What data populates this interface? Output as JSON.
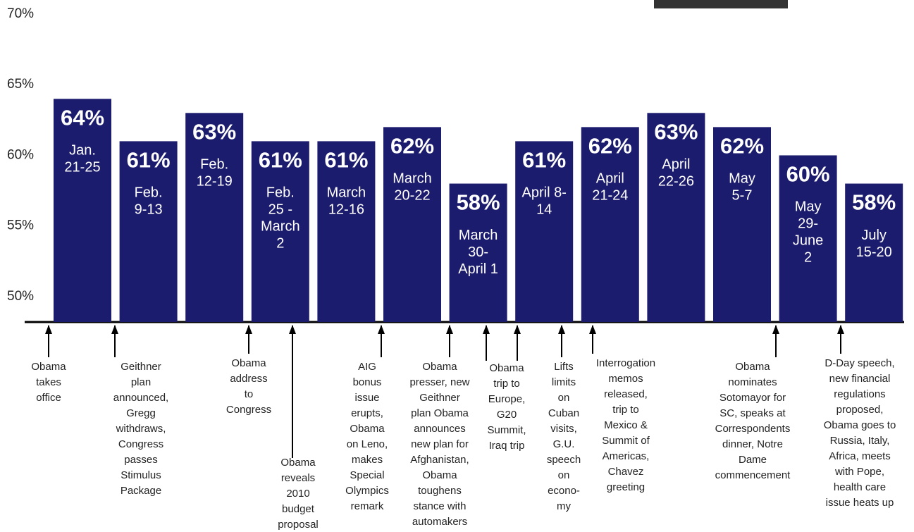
{
  "chart_data": {
    "type": "bar",
    "color": "#1c1c6e",
    "categories": [
      [
        "Jan.",
        "21-25"
      ],
      [
        "Feb.",
        "9-13"
      ],
      [
        "Feb.",
        "12-19"
      ],
      [
        "Feb.",
        "25 -",
        "March",
        "2"
      ],
      [
        "March",
        "12-16"
      ],
      [
        "March",
        "20-22"
      ],
      [
        "March",
        "30-",
        "April 1"
      ],
      [
        "April 8-",
        "14"
      ],
      [
        "April",
        "21-24"
      ],
      [
        "April",
        "22-26"
      ],
      [
        "May",
        "5-7"
      ],
      [
        "May",
        "29-",
        "June",
        "2"
      ],
      [
        "July",
        "15-20"
      ]
    ],
    "values": [
      64,
      61,
      63,
      61,
      61,
      62,
      58,
      61,
      62,
      63,
      62,
      60,
      58
    ],
    "value_labels": [
      "64%",
      "61%",
      "63%",
      "61%",
      "61%",
      "62%",
      "58%",
      "61%",
      "62%",
      "63%",
      "62%",
      "60%",
      "58%"
    ],
    "ylim": [
      48.2,
      70
    ],
    "yticks": [
      {
        "value": 50,
        "label": "50%"
      },
      {
        "value": 55,
        "label": "55%"
      },
      {
        "value": 60,
        "label": "60%"
      },
      {
        "value": 65,
        "label": "65%"
      },
      {
        "value": 70,
        "label": "70%"
      }
    ],
    "grid": false,
    "events": [
      [
        "Obama",
        "takes",
        "office"
      ],
      [
        "Geithner",
        "plan",
        "announced,",
        "Gregg",
        "withdraws,",
        "Congress",
        "passes",
        "Stimulus",
        "Package"
      ],
      [
        "Obama",
        "address",
        "to",
        "Congress"
      ],
      [
        "Obama",
        "reveals",
        "2010",
        "budget",
        "proposal"
      ],
      [
        "AIG",
        "bonus",
        "issue",
        "erupts,",
        "Obama",
        "on Leno,",
        "makes",
        "Special",
        "Olympics",
        "remark"
      ],
      [
        "Obama",
        "presser, new",
        "Geithner",
        "plan Obama",
        "announces",
        "new plan for",
        "Afghanistan,",
        "Obama",
        "toughens",
        "stance with",
        "automakers"
      ],
      [
        "Obama",
        "trip to",
        "Europe,",
        "G20",
        "Summit,",
        "Iraq trip"
      ],
      [
        "Lifts",
        "limits",
        "on",
        "Cuban",
        "visits,",
        "G.U.",
        "speech",
        "on",
        "econo-",
        "my"
      ],
      [
        "Interrogation",
        "memos",
        "released,",
        "trip to",
        "Mexico &",
        "Summit of",
        "Americas,",
        "Chavez",
        "greeting"
      ],
      [
        "Obama",
        "nominates",
        "Sotomayor for",
        "SC, speaks at",
        "Correspondents",
        "dinner, Notre",
        "Dame",
        "commencement"
      ],
      [
        "D-Day speech,",
        "new financial",
        "regulations",
        "proposed,",
        "Obama goes to",
        "Russia, Italy,",
        "Africa, meets",
        "with Pope,",
        "health care",
        "issue heats up"
      ]
    ]
  }
}
